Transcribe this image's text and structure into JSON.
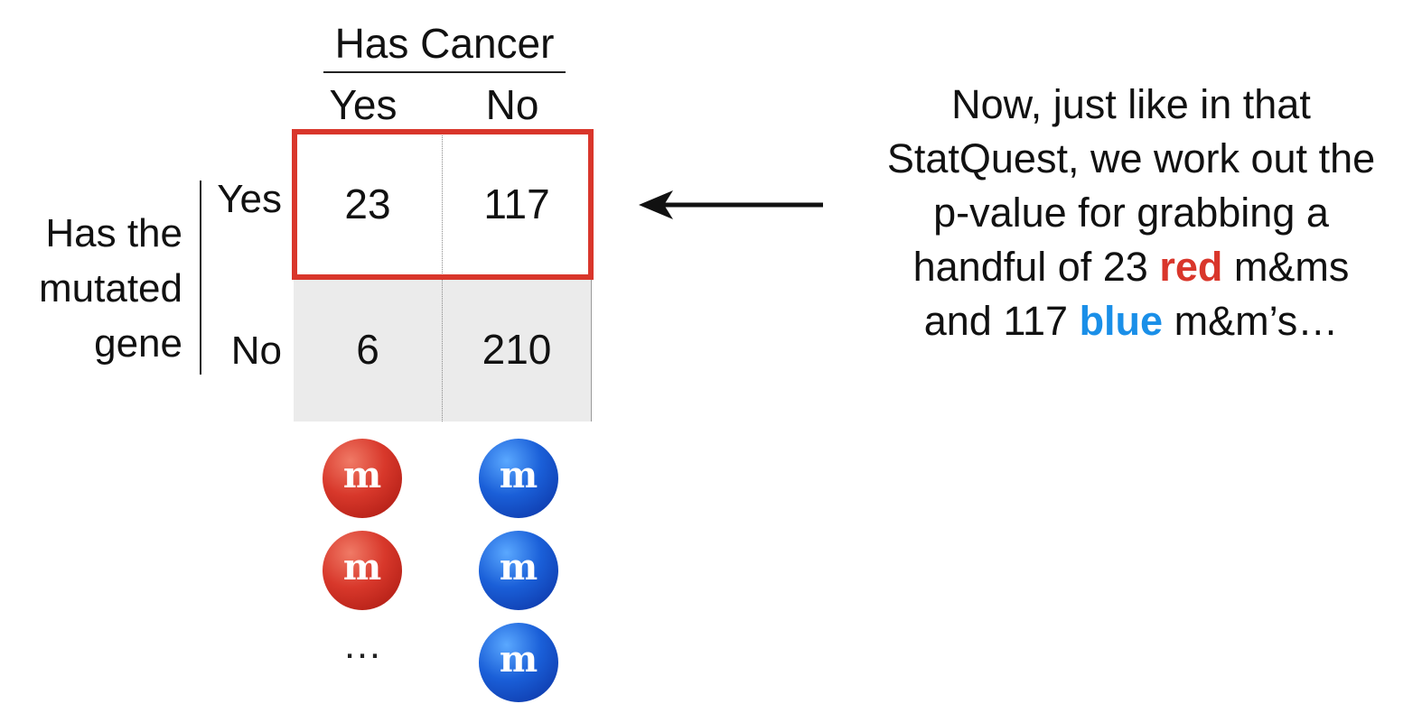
{
  "table": {
    "column_header": "Has Cancer",
    "column_labels": [
      "Yes",
      "No"
    ],
    "row_header_lines": [
      "Has the",
      "mutated",
      "gene"
    ],
    "row_labels": [
      "Yes",
      "No"
    ],
    "cells": [
      [
        "23",
        "117"
      ],
      [
        "6",
        "210"
      ]
    ]
  },
  "explanation": {
    "line1": "Now, just like in that",
    "line2": "StatQuest, we work out the",
    "line3": "p-value for grabbing a",
    "line4_before": "handful of 23 ",
    "line4_red": "red",
    "line4_after": " m&ms",
    "line5_before": "and 117 ",
    "line5_blue": "blue",
    "line5_after": " m&m’s…"
  },
  "candies": {
    "glyph": "m",
    "ellipsis": "…",
    "red_color": "#d8382b",
    "blue_color": "#1a5fd8"
  },
  "colors": {
    "highlight": "#d9362b",
    "red_text": "#d9362b",
    "blue_text": "#1a8fe8",
    "bottom_row_fill": "#ebebeb"
  }
}
